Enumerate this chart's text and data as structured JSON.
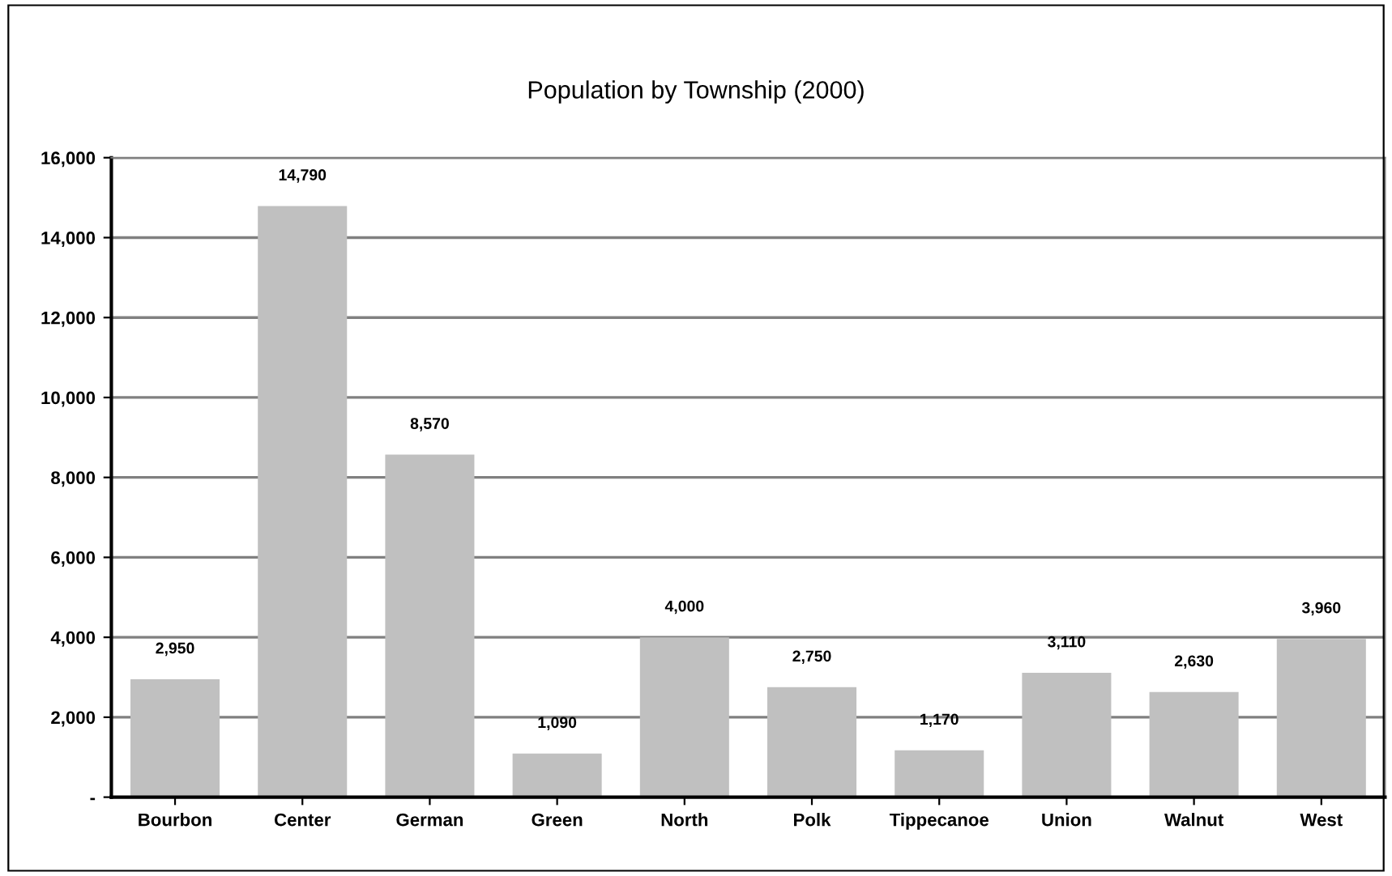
{
  "chart_data": {
    "type": "bar",
    "title": "Population by Township (2000)",
    "categories": [
      "Bourbon",
      "Center",
      "German",
      "Green",
      "North",
      "Polk",
      "Tippecanoe",
      "Union",
      "Walnut",
      "West"
    ],
    "values": [
      2950,
      14790,
      8570,
      1090,
      4000,
      2750,
      1170,
      3110,
      2630,
      3960
    ],
    "value_labels": [
      "2,950",
      "14,790",
      "8,570",
      "1,090",
      "4,000",
      "2,750",
      "1,170",
      "3,110",
      "2,630",
      "3,960"
    ],
    "color": "#c0c0c0",
    "ylim": [
      0,
      16000
    ],
    "yticks": [
      {
        "value": 0,
        "label": "-"
      },
      {
        "value": 2000,
        "label": "2,000"
      },
      {
        "value": 4000,
        "label": "4,000"
      },
      {
        "value": 6000,
        "label": "6,000"
      },
      {
        "value": 8000,
        "label": "8,000"
      },
      {
        "value": 10000,
        "label": "10,000"
      },
      {
        "value": 12000,
        "label": "12,000"
      },
      {
        "value": 14000,
        "label": "14,000"
      },
      {
        "value": 16000,
        "label": "16,000"
      }
    ],
    "grid": "y"
  }
}
